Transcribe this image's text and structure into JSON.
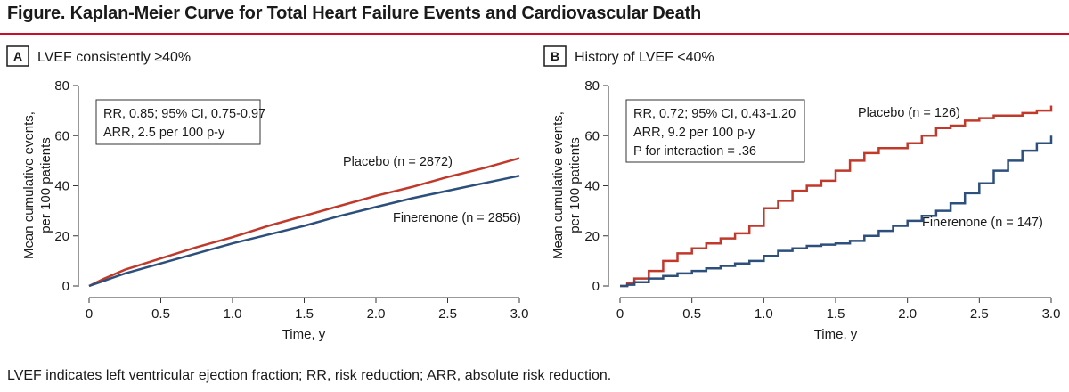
{
  "figure": {
    "title": "Figure. Kaplan-Meier Curve for Total Heart Failure Events and Cardiovascular Death",
    "caption": "LVEF indicates left ventricular ejection fraction; RR, risk reduction; ARR, absolute risk reduction."
  },
  "colors": {
    "placebo": "#c0392b",
    "finerenone": "#2c4f7c",
    "axis": "#333333"
  },
  "chart_data": [
    {
      "type": "line",
      "panel_letter": "A",
      "panel_title": "LVEF consistently ≥40%",
      "xlabel": "Time, y",
      "ylabel_line1": "Mean cumulative events,",
      "ylabel_line2": "per 100 patients",
      "xlim": [
        0,
        3
      ],
      "ylim": [
        0,
        80
      ],
      "xticks": [
        "0",
        "0.5",
        "1.0",
        "1.5",
        "2.0",
        "2.5",
        "3.0"
      ],
      "yticks": [
        "0",
        "20",
        "40",
        "60",
        "80"
      ],
      "annotation": [
        "RR, 0.85; 95% CI, 0.75-0.97",
        "ARR, 2.5 per 100 p-y"
      ],
      "series": [
        {
          "name": "Placebo",
          "label": "Placebo (n = 2872)",
          "x": [
            0,
            0.1,
            0.25,
            0.5,
            0.75,
            1.0,
            1.25,
            1.5,
            1.75,
            2.0,
            2.25,
            2.5,
            2.75,
            3.0
          ],
          "values": [
            0,
            2.8,
            6.5,
            11,
            15.5,
            19.5,
            24,
            28,
            32,
            36,
            39.5,
            43.5,
            47,
            51
          ]
        },
        {
          "name": "Finerenone",
          "label": "Finerenone (n = 2856)",
          "x": [
            0,
            0.1,
            0.25,
            0.5,
            0.75,
            1.0,
            1.25,
            1.5,
            1.75,
            2.0,
            2.25,
            2.5,
            2.75,
            3.0
          ],
          "values": [
            0,
            2.0,
            5.0,
            9.0,
            13.0,
            17.0,
            20.5,
            24,
            28,
            31.5,
            35,
            38,
            41,
            44
          ]
        }
      ]
    },
    {
      "type": "line",
      "panel_letter": "B",
      "panel_title": "History of LVEF <40%",
      "xlabel": "Time, y",
      "ylabel_line1": "Mean cumulative events,",
      "ylabel_line2": "per 100 patients",
      "xlim": [
        0,
        3
      ],
      "ylim": [
        0,
        80
      ],
      "xticks": [
        "0",
        "0.5",
        "1.0",
        "1.5",
        "2.0",
        "2.5",
        "3.0"
      ],
      "yticks": [
        "0",
        "20",
        "40",
        "60",
        "80"
      ],
      "annotation": [
        "RR, 0.72; 95% CI, 0.43-1.20",
        "ARR, 9.2 per 100 p-y",
        "P for interaction = .36"
      ],
      "series": [
        {
          "name": "Placebo",
          "label": "Placebo (n = 126)",
          "x": [
            0,
            0.05,
            0.1,
            0.2,
            0.3,
            0.4,
            0.5,
            0.6,
            0.7,
            0.8,
            0.9,
            1.0,
            1.1,
            1.2,
            1.3,
            1.4,
            1.5,
            1.6,
            1.7,
            1.8,
            1.9,
            2.0,
            2.1,
            2.2,
            2.3,
            2.4,
            2.5,
            2.6,
            2.7,
            2.8,
            2.9,
            3.0
          ],
          "values": [
            0,
            1,
            3,
            6,
            10,
            13,
            15,
            17,
            19,
            21,
            24,
            31,
            34,
            38,
            40,
            42,
            46,
            50,
            53,
            55,
            55,
            57,
            60,
            63,
            64,
            66,
            67,
            68,
            68,
            69,
            70,
            72
          ]
        },
        {
          "name": "Finerenone",
          "label": "Finerenone (n = 147)",
          "x": [
            0,
            0.05,
            0.1,
            0.2,
            0.3,
            0.4,
            0.5,
            0.6,
            0.7,
            0.8,
            0.9,
            1.0,
            1.1,
            1.2,
            1.3,
            1.4,
            1.5,
            1.6,
            1.7,
            1.8,
            1.9,
            2.0,
            2.1,
            2.2,
            2.3,
            2.4,
            2.5,
            2.6,
            2.7,
            2.8,
            2.9,
            3.0
          ],
          "values": [
            0,
            0.5,
            1.5,
            3,
            4,
            5,
            6,
            7,
            8,
            9,
            10,
            12,
            14,
            15,
            16,
            16.5,
            17,
            18,
            20,
            22,
            24,
            26,
            28,
            30,
            33,
            37,
            41,
            46,
            50,
            54,
            57,
            60
          ]
        }
      ]
    }
  ]
}
